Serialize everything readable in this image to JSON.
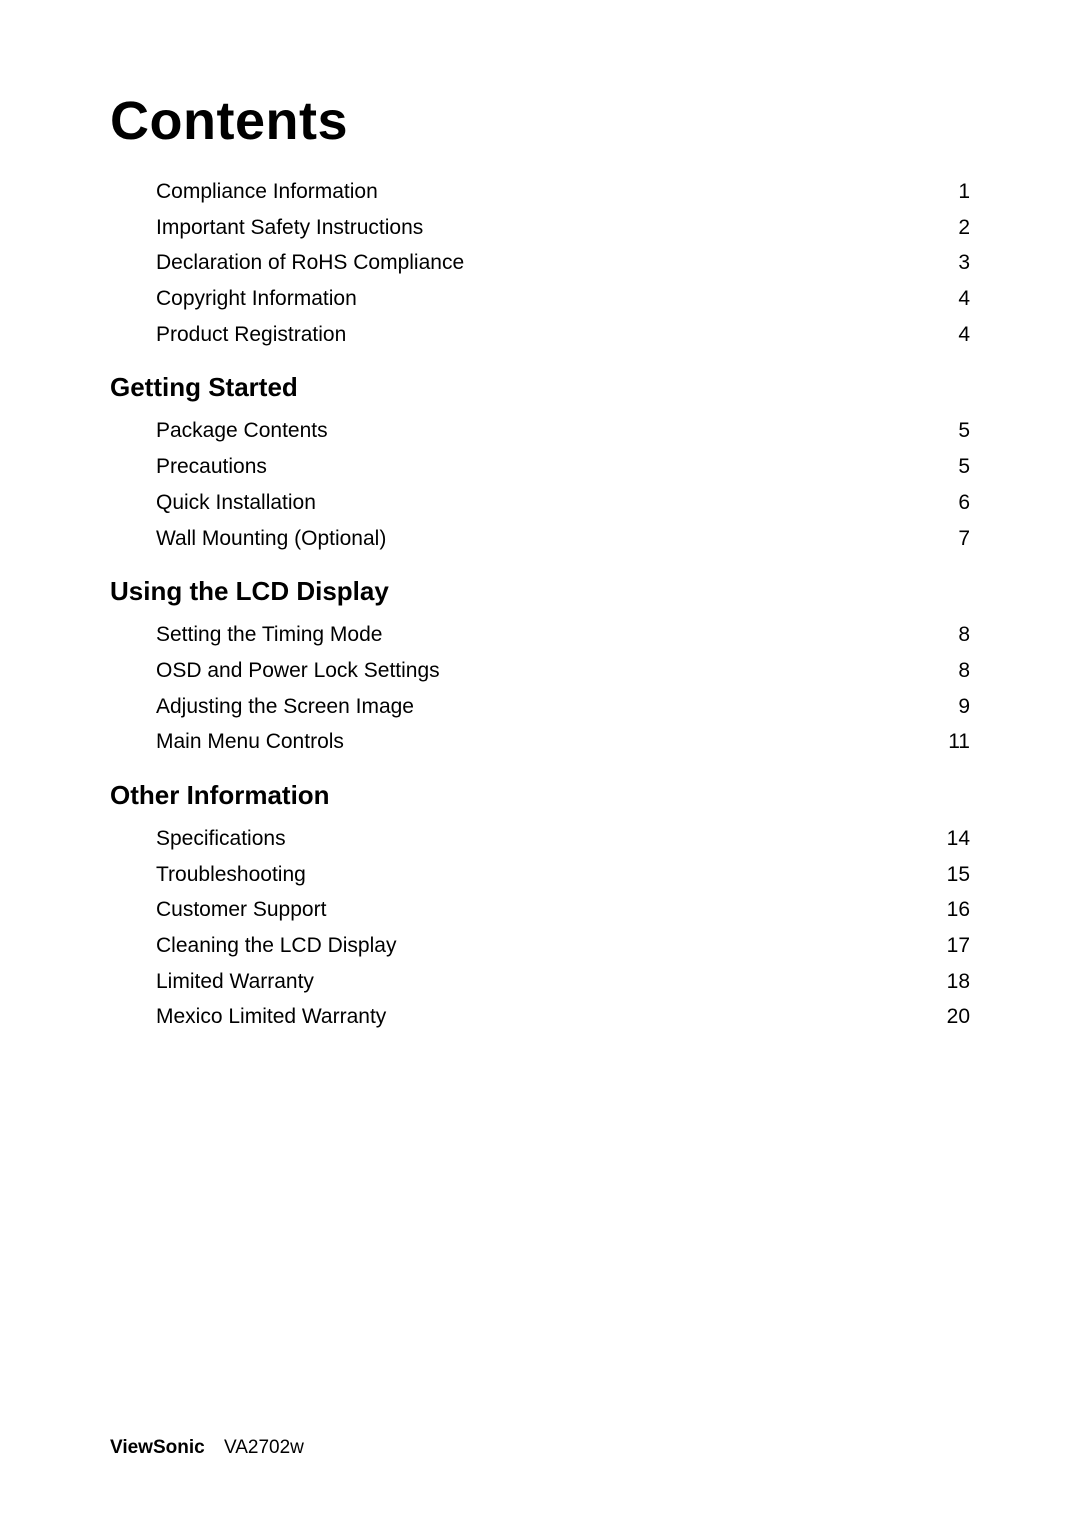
{
  "title": "Contents",
  "sections": [
    {
      "heading": null,
      "items": [
        {
          "label": "Compliance Information",
          "page": "1"
        },
        {
          "label": "Important Safety Instructions",
          "page": "2"
        },
        {
          "label": "Declaration of RoHS Compliance",
          "page": "3"
        },
        {
          "label": "Copyright Information",
          "page": "4"
        },
        {
          "label": "Product Registration",
          "page": "4"
        }
      ]
    },
    {
      "heading": "Getting Started",
      "items": [
        {
          "label": "Package Contents",
          "page": "5"
        },
        {
          "label": "Precautions",
          "page": "5"
        },
        {
          "label": "Quick Installation",
          "page": "6"
        },
        {
          "label": "Wall Mounting (Optional)",
          "page": "7"
        }
      ]
    },
    {
      "heading": "Using the LCD Display",
      "items": [
        {
          "label": "Setting the Timing Mode",
          "page": "8"
        },
        {
          "label": "OSD and Power Lock Settings",
          "page": "8"
        },
        {
          "label": "Adjusting the Screen Image",
          "page": "9"
        },
        {
          "label": "Main Menu Controls",
          "page": "11"
        }
      ]
    },
    {
      "heading": "Other Information",
      "items": [
        {
          "label": "Specifications",
          "page": "14"
        },
        {
          "label": "Troubleshooting",
          "page": "15"
        },
        {
          "label": "Customer Support",
          "page": "16"
        },
        {
          "label": "Cleaning the LCD Display",
          "page": "17"
        },
        {
          "label": "Limited Warranty",
          "page": "18"
        },
        {
          "label": "Mexico Limited Warranty",
          "page": "20"
        }
      ]
    }
  ],
  "footer": {
    "brand": "ViewSonic",
    "model": "VA2702w"
  }
}
